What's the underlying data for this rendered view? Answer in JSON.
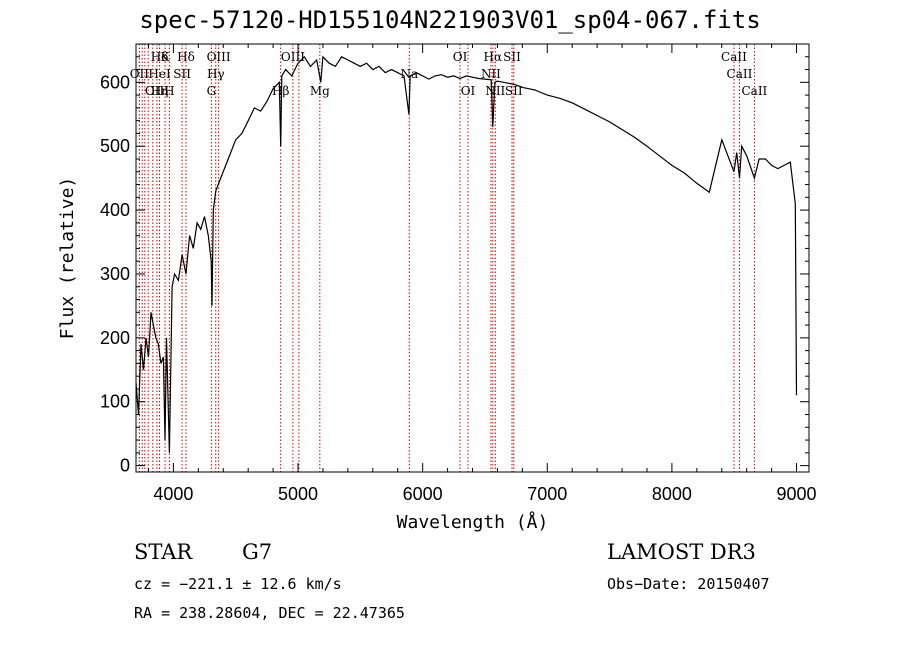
{
  "title": "spec-57120-HD155104N221903V01_sp04-067.fits",
  "chart_data": {
    "type": "line",
    "xlabel": "Wavelength (Å)",
    "ylabel": "Flux (relative)",
    "xlim": [
      3700,
      9100
    ],
    "ylim": [
      -10,
      660
    ],
    "xticks": [
      4000,
      5000,
      6000,
      7000,
      8000,
      9000
    ],
    "yticks": [
      0,
      100,
      200,
      300,
      400,
      500,
      600
    ],
    "grid": false,
    "series": [
      {
        "x": [
          3700,
          3720,
          3740,
          3760,
          3780,
          3800,
          3820,
          3840,
          3860,
          3880,
          3900,
          3920,
          3933,
          3945,
          3968,
          3990,
          4010,
          4040,
          4070,
          4101,
          4130,
          4160,
          4190,
          4220,
          4250,
          4280,
          4303,
          4310,
          4320,
          4340,
          4380,
          4420,
          4460,
          4500,
          4550,
          4600,
          4650,
          4700,
          4750,
          4800,
          4850,
          4861,
          4870,
          4900,
          4950,
          5000,
          5050,
          5100,
          5150,
          5183,
          5200,
          5250,
          5300,
          5350,
          5400,
          5450,
          5500,
          5550,
          5600,
          5650,
          5700,
          5750,
          5800,
          5850,
          5890,
          5900,
          5950,
          6000,
          6050,
          6100,
          6150,
          6200,
          6250,
          6300,
          6350,
          6400,
          6450,
          6500,
          6550,
          6563,
          6580,
          6600,
          6650,
          6700,
          6750,
          6800,
          6850,
          6900,
          6950,
          7000,
          7100,
          7200,
          7300,
          7400,
          7500,
          7600,
          7700,
          7800,
          7900,
          8000,
          8100,
          8200,
          8300,
          8400,
          8498,
          8520,
          8542,
          8560,
          8600,
          8662,
          8700,
          8750,
          8800,
          8850,
          8900,
          8950,
          8990,
          9000
        ],
        "y": [
          130,
          80,
          190,
          150,
          200,
          170,
          240,
          220,
          200,
          190,
          160,
          170,
          40,
          200,
          20,
          280,
          300,
          290,
          330,
          300,
          360,
          340,
          380,
          370,
          390,
          360,
          320,
          250,
          400,
          430,
          450,
          470,
          490,
          510,
          520,
          540,
          560,
          555,
          570,
          590,
          600,
          500,
          610,
          620,
          610,
          630,
          640,
          625,
          635,
          600,
          640,
          630,
          625,
          640,
          635,
          630,
          625,
          630,
          620,
          625,
          615,
          620,
          615,
          610,
          550,
          610,
          615,
          610,
          605,
          610,
          612,
          608,
          610,
          606,
          610,
          608,
          606,
          605,
          604,
          530,
          600,
          602,
          600,
          598,
          596,
          592,
          590,
          588,
          584,
          580,
          575,
          568,
          558,
          548,
          538,
          526,
          514,
          500,
          485,
          470,
          458,
          442,
          428,
          510,
          460,
          490,
          450,
          500,
          485,
          450,
          480,
          480,
          470,
          465,
          470,
          475,
          410,
          110
        ]
      }
    ],
    "line_labels": [
      {
        "name": "Hδ",
        "x": 3889,
        "row": 0
      },
      {
        "name": "OII",
        "x": 3727,
        "row": 1
      },
      {
        "name": "OIII",
        "x": 3868,
        "row": 2
      },
      {
        "name": "K",
        "x": 3933,
        "row": 0
      },
      {
        "name": "HeI",
        "x": 3889,
        "row": 1
      },
      {
        "name": "Hη",
        "x": 3889,
        "row": 2
      },
      {
        "name": "H",
        "x": 3968,
        "row": 2
      },
      {
        "name": "Hδ",
        "x": 4101,
        "row": 0
      },
      {
        "name": "SII",
        "x": 4070,
        "row": 1
      },
      {
        "name": "OIII",
        "x": 4363,
        "row": 0
      },
      {
        "name": "Hγ",
        "x": 4340,
        "row": 1
      },
      {
        "name": "G",
        "x": 4305,
        "row": 2
      },
      {
        "name": "OIII",
        "x": 4959,
        "row": 0
      },
      {
        "name": "Hβ",
        "x": 4861,
        "row": 2
      },
      {
        "name": "Mg",
        "x": 5175,
        "row": 2
      },
      {
        "name": "Na",
        "x": 5893,
        "row": 1
      },
      {
        "name": "OI",
        "x": 6300,
        "row": 0
      },
      {
        "name": "OI",
        "x": 6364,
        "row": 2
      },
      {
        "name": "Hα",
        "x": 6563,
        "row": 0
      },
      {
        "name": "SII",
        "x": 6717,
        "row": 0
      },
      {
        "name": "NII",
        "x": 6548,
        "row": 1
      },
      {
        "name": "NII",
        "x": 6583,
        "row": 2
      },
      {
        "name": "SII",
        "x": 6731,
        "row": 2
      },
      {
        "name": "CaII",
        "x": 8498,
        "row": 0
      },
      {
        "name": "CaII",
        "x": 8542,
        "row": 1
      },
      {
        "name": "CaII",
        "x": 8662,
        "row": 2
      }
    ],
    "line_markers_x": [
      3727,
      3750,
      3771,
      3798,
      3835,
      3868,
      3889,
      3933,
      3968,
      4070,
      4101,
      4305,
      4340,
      4363,
      4861,
      4959,
      5007,
      5175,
      5893,
      6300,
      6364,
      6548,
      6563,
      6583,
      6717,
      6731,
      8498,
      8542,
      8662
    ],
    "line_marker_color": "#cc0000"
  },
  "info": {
    "class": "STAR",
    "subclass": "G7",
    "survey": "LAMOST DR3",
    "cz": "cz = −221.1 ± 12.6 km/s",
    "obs_date": "Obs−Date: 20150407",
    "coords": "RA = 238.28604, DEC =  22.47365"
  }
}
